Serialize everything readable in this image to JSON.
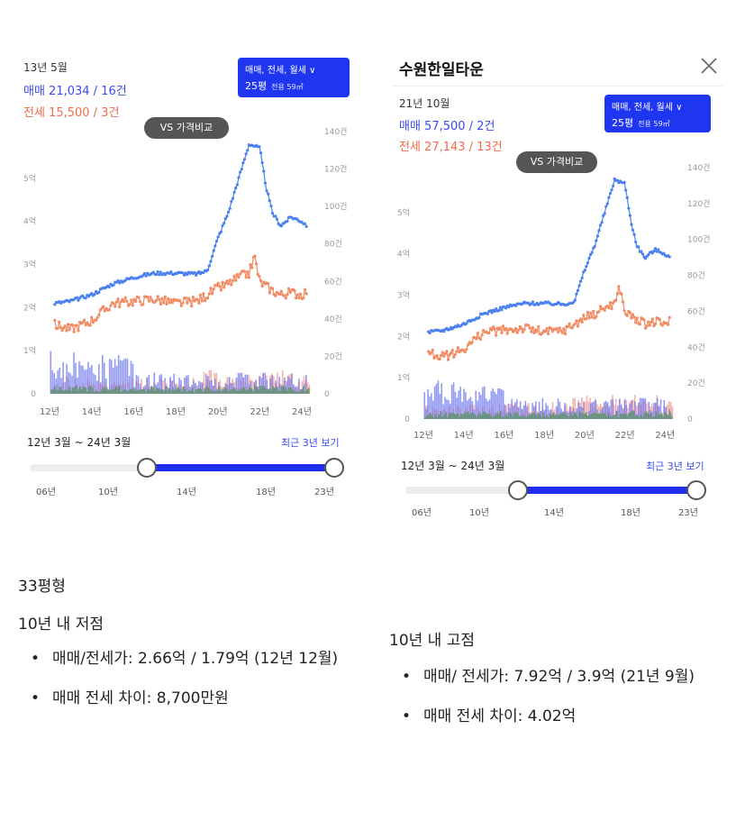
{
  "left_panel": {
    "date": "13년 5월",
    "sale": "매매 21,034 / 16건",
    "rent": "전세 15,500 / 3건",
    "filter": {
      "line1": "매매, 전세, 월세 ∨",
      "size": "25평",
      "area": "전용 59㎡"
    },
    "vs_label": "VS 가격비교",
    "range_label": "12년 3월 ~ 24년 3월",
    "recent_link": "최근 3년 보기",
    "slider_ticks": [
      "06년",
      "10년",
      "14년",
      "18년",
      "23년"
    ]
  },
  "right_panel": {
    "title": "수원한일타운",
    "date": "21년 10월",
    "sale": "매매 57,500 / 2건",
    "rent": "전세 27,143 / 13건",
    "filter": {
      "line1": "매매, 전세, 월세 ∨",
      "size": "25평",
      "area": "전용 59㎡"
    },
    "vs_label": "VS 가격비교",
    "range_label": "12년 3월 ~ 24년 3월",
    "recent_link": "최근 3년 보기",
    "slider_ticks": [
      "06년",
      "10년",
      "14년",
      "18년",
      "23년"
    ]
  },
  "notes": {
    "type_label": "33평형",
    "low_heading": "10년 내 저점",
    "low_items": [
      "매매/전세가: 2.66억 / 1.79억 (12년 12월)",
      "매매 전세 차이: 8,700만원"
    ],
    "high_heading": "10년 내 고점",
    "high_items": [
      "매매/ 전세가: 7.92억 / 3.9억 (21년 9월)",
      "매매 전세 차이: 4.02억"
    ]
  },
  "colors": {
    "sale": "#4a80f0",
    "rent": "#f28a62",
    "volume_sale": "#6e78f0",
    "volume_rent": "#f4a39a",
    "volume_monthly": "#5aa040",
    "accent": "#1f36f0"
  },
  "chart_data": [
    {
      "type": "line",
      "x": [
        2012.25,
        2013,
        2014,
        2015,
        2016,
        2017,
        2018,
        2019,
        2019.5,
        2020,
        2020.5,
        2021,
        2021.5,
        2021.75,
        2022,
        2022.3,
        2022.6,
        2023,
        2023.5,
        2024,
        2024.25
      ],
      "series": [
        {
          "values": [
            2.1,
            2.15,
            2.3,
            2.55,
            2.7,
            2.8,
            2.8,
            2.78,
            2.85,
            3.6,
            4.2,
            5.0,
            5.8,
            5.75,
            5.7,
            4.8,
            4.2,
            3.9,
            4.1,
            4.0,
            3.9
          ]
        },
        {
          "values": [
            1.6,
            1.5,
            1.7,
            2.1,
            2.15,
            2.2,
            2.1,
            2.15,
            2.3,
            2.45,
            2.55,
            2.7,
            2.8,
            3.2,
            2.6,
            2.5,
            2.4,
            2.3,
            2.35,
            2.3,
            2.4
          ]
        }
      ],
      "y_left_ticks": [
        "0",
        "1억",
        "2억",
        "3억",
        "4억",
        "5억"
      ],
      "y_right_ticks": [
        "0",
        "20건",
        "40건",
        "60건",
        "80건",
        "100건",
        "120건",
        "140건"
      ],
      "x_ticks": [
        "12년",
        "14년",
        "16년",
        "18년",
        "20년",
        "22년",
        "24년"
      ],
      "ylim": [
        0,
        6
      ],
      "xlim": [
        2012,
        2024.3
      ]
    }
  ]
}
